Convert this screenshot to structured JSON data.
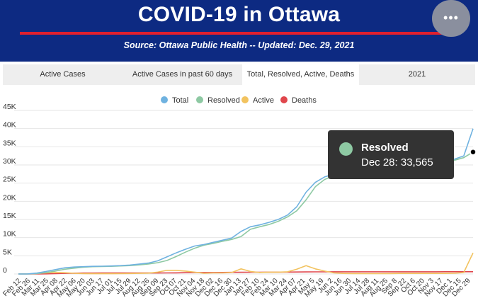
{
  "header": {
    "title": "COVID-19 in Ottawa",
    "subtitle": "Source:  Ottawa Public Health -- Updated:  Dec. 29, 2021",
    "menu_icon": "more-horizontal-icon",
    "menu_label": "•••"
  },
  "tabs": [
    {
      "label": "Active Cases",
      "active": false
    },
    {
      "label": "Active Cases in past 60 days",
      "active": false
    },
    {
      "label": "Total, Resolved, Active, Deaths",
      "active": true
    },
    {
      "label": "2021",
      "active": false
    }
  ],
  "colors": {
    "header_bg": "#0d2a82",
    "accent_red": "#e0202e",
    "total": "#6fb2e0",
    "resolved": "#8ec9a3",
    "active": "#f2c35f",
    "deaths": "#e0464c"
  },
  "tooltip": {
    "series": "Resolved",
    "value": "Dec 28: 33,565"
  },
  "chart_data": {
    "type": "line",
    "legend_position": "top-center",
    "grid": true,
    "ylim": [
      0,
      45000
    ],
    "y_ticks": [
      "0",
      "5K",
      "10K",
      "15K",
      "20K",
      "25K",
      "30K",
      "35K",
      "40K",
      "45K"
    ],
    "x_tick_labels": [
      "Feb 12",
      "Feb 26",
      "Mar 11",
      "Mar 25",
      "Apr 08",
      "Apr 22",
      "May 06",
      "May 20",
      "Jun 03",
      "Jun 17",
      "Jul 01",
      "Jul 15",
      "Jul 29",
      "Aug 12",
      "Aug 26",
      "Sep 09",
      "Sep 23",
      "Oct 07",
      "Oct 21",
      "Nov 04",
      "Nov 18",
      "Dec 02",
      "Dec 16",
      "Dec 30",
      "Jan 13",
      "Jan 27",
      "Feb 10",
      "Feb 24",
      "Mar 10",
      "Mar 24",
      "Apr 07",
      "Apr 21",
      "May 5",
      "May 19",
      "Jun 2",
      "Jun 16",
      "Jun 30",
      "Jul 14",
      "Jul 28",
      "Aug 11",
      "Aug 25",
      "Sep 8",
      "Sep 22",
      "Oct 6",
      "Oct 20",
      "Nov 3",
      "Nov 17",
      "Dec 1",
      "Dec 15",
      "Dec 29"
    ],
    "series": [
      {
        "name": "Total",
        "color": "#6fb2e0",
        "values": [
          0,
          20,
          250,
          700,
          1200,
          1700,
          1900,
          2000,
          2100,
          2150,
          2200,
          2300,
          2450,
          2700,
          3000,
          3600,
          4700,
          5800,
          6800,
          7700,
          8100,
          8700,
          9300,
          9900,
          11700,
          13000,
          13500,
          14200,
          15000,
          16200,
          18500,
          22500,
          25200,
          26700,
          27500,
          27800,
          28200,
          28500,
          28700,
          29000,
          29300,
          29700,
          30000,
          30300,
          30600,
          30900,
          31200,
          31600,
          32500,
          40000
        ]
      },
      {
        "name": "Resolved",
        "color": "#8ec9a3",
        "values": [
          0,
          10,
          100,
          400,
          800,
          1300,
          1600,
          1850,
          2000,
          2050,
          2100,
          2200,
          2300,
          2500,
          2750,
          3100,
          3700,
          4800,
          6000,
          7100,
          7900,
          8400,
          9000,
          9500,
          10300,
          12300,
          13000,
          13600,
          14500,
          15700,
          17400,
          20400,
          24000,
          26000,
          27000,
          27500,
          28000,
          28300,
          28500,
          28800,
          29100,
          29400,
          29700,
          30000,
          30300,
          30600,
          30900,
          31300,
          32000,
          33565
        ]
      },
      {
        "name": "Active",
        "color": "#f2c35f",
        "values": [
          0,
          10,
          150,
          300,
          400,
          350,
          200,
          100,
          80,
          70,
          70,
          90,
          130,
          180,
          230,
          500,
          1000,
          1000,
          800,
          500,
          200,
          300,
          300,
          400,
          1400,
          700,
          400,
          500,
          500,
          600,
          1300,
          2300,
          1400,
          800,
          300,
          150,
          120,
          100,
          100,
          100,
          120,
          150,
          150,
          150,
          150,
          150,
          150,
          200,
          400,
          5800
        ]
      },
      {
        "name": "Deaths",
        "color": "#e0464c",
        "values": [
          0,
          0,
          10,
          40,
          100,
          170,
          220,
          250,
          260,
          265,
          265,
          268,
          270,
          272,
          275,
          280,
          290,
          320,
          350,
          380,
          400,
          410,
          420,
          440,
          460,
          480,
          490,
          500,
          510,
          520,
          540,
          560,
          580,
          590,
          595,
          596,
          597,
          598,
          599,
          600,
          600,
          602,
          605,
          608,
          610,
          612,
          615,
          618,
          620,
          625
        ]
      }
    ]
  }
}
